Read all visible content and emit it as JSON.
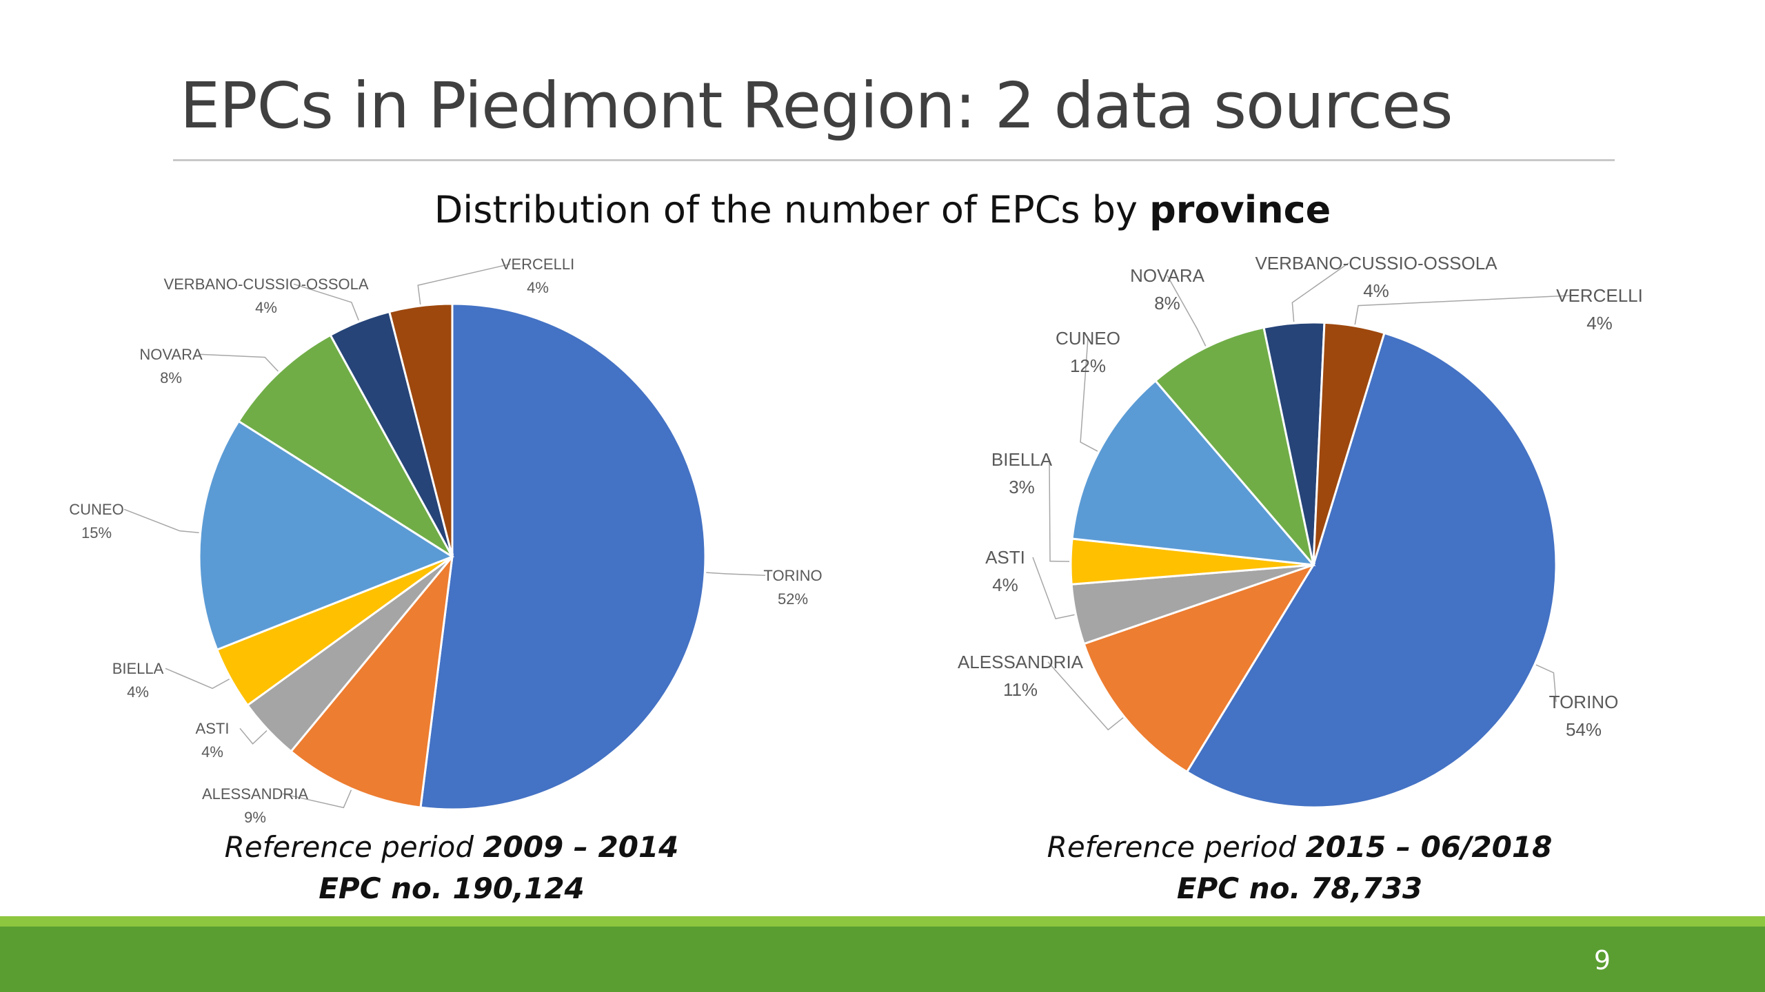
{
  "slide": {
    "title": "EPCs in Piedmont Region: 2 data sources",
    "subtitle_prefix": "Distribution of the number of EPCs by ",
    "subtitle_bold": "province",
    "page_number": "9"
  },
  "colors": {
    "footer": "#5a9e32",
    "footer_light": "#8dc63f",
    "leader_line": "#a6a6a6",
    "label_text": "#595959"
  },
  "chart_data": [
    {
      "type": "pie",
      "title": "",
      "slices": [
        {
          "label": "TORINO",
          "value": 52,
          "display": "52%",
          "color": "#4472c4"
        },
        {
          "label": "ALESSANDRIA",
          "value": 9,
          "display": "9%",
          "color": "#ed7d31"
        },
        {
          "label": "ASTI",
          "value": 4,
          "display": "4%",
          "color": "#a5a5a5"
        },
        {
          "label": "BIELLA",
          "value": 4,
          "display": "4%",
          "color": "#ffc000"
        },
        {
          "label": "CUNEO",
          "value": 15,
          "display": "15%",
          "color": "#5b9bd5"
        },
        {
          "label": "NOVARA",
          "value": 8,
          "display": "8%",
          "color": "#70ad47"
        },
        {
          "label": "VERBANO-CUSSIO-OSSOLA",
          "value": 4,
          "display": "4%",
          "color": "#264478"
        },
        {
          "label": "VERCELLI",
          "value": 4,
          "display": "4%",
          "color": "#9e480e"
        }
      ],
      "caption": {
        "period_prefix": "Reference period ",
        "period_value": "2009 – 2014",
        "epc_label": "EPC no. 190,124"
      }
    },
    {
      "type": "pie",
      "title": "",
      "slices": [
        {
          "label": "TORINO",
          "value": 54,
          "display": "54%",
          "color": "#4472c4"
        },
        {
          "label": "ALESSANDRIA",
          "value": 11,
          "display": "11%",
          "color": "#ed7d31"
        },
        {
          "label": "ASTI",
          "value": 4,
          "display": "4%",
          "color": "#a5a5a5"
        },
        {
          "label": "BIELLA",
          "value": 3,
          "display": "3%",
          "color": "#ffc000"
        },
        {
          "label": "CUNEO",
          "value": 12,
          "display": "12%",
          "color": "#5b9bd5"
        },
        {
          "label": "NOVARA",
          "value": 8,
          "display": "8%",
          "color": "#70ad47"
        },
        {
          "label": "VERBANO-CUSSIO-OSSOLA",
          "value": 4,
          "display": "4%",
          "color": "#264478"
        },
        {
          "label": "VERCELLI",
          "value": 4,
          "display": "4%",
          "color": "#9e480e"
        }
      ],
      "caption": {
        "period_prefix": "Reference period ",
        "period_value": "2015 – 06/2018",
        "epc_label": "EPC no. 78,733"
      }
    }
  ]
}
